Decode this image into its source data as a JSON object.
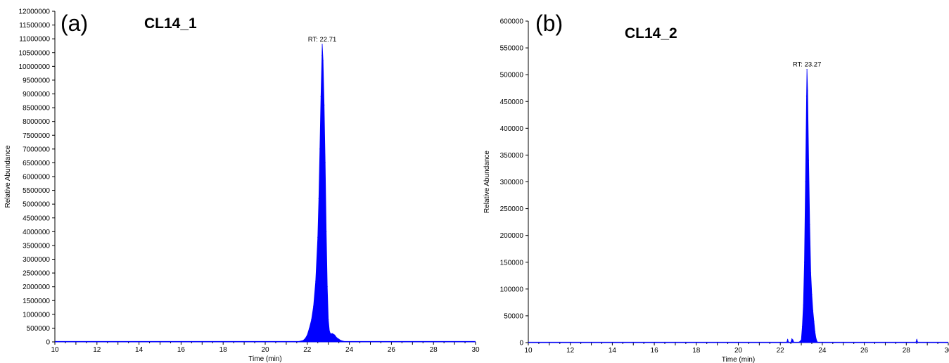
{
  "chart_data": [
    {
      "type": "area",
      "panel_label": "(a)",
      "title": "CL14_1",
      "xlabel": "Time (min)",
      "ylabel": "Relative Abundance",
      "xlim": [
        10,
        30
      ],
      "ylim": [
        0,
        12000000
      ],
      "xticks": [
        10,
        12,
        14,
        16,
        18,
        20,
        22,
        24,
        26,
        28,
        30
      ],
      "yticks": [
        0,
        500000,
        1000000,
        1500000,
        2000000,
        2500000,
        3000000,
        3500000,
        4000000,
        4500000,
        5000000,
        5500000,
        6000000,
        6500000,
        7000000,
        7500000,
        8000000,
        8500000,
        9000000,
        9500000,
        10000000,
        10500000,
        11000000,
        11500000,
        12000000
      ],
      "color": "#0000ff",
      "grid": false,
      "peak_annotation": {
        "label": "RT: 22.71",
        "x": 22.71,
        "y": 10800000
      },
      "series": [
        {
          "x": [
            10.0,
            21.5,
            21.8,
            21.9,
            22.0,
            22.1,
            22.2,
            22.3,
            22.4,
            22.5,
            22.55,
            22.6,
            22.65,
            22.7,
            22.71,
            22.75,
            22.8,
            22.85,
            22.9,
            22.95,
            23.0,
            23.05,
            23.1,
            23.2,
            23.3,
            23.4,
            23.5,
            23.6,
            23.8,
            30.0
          ],
          "y": [
            0,
            0,
            50000,
            120000,
            250000,
            500000,
            800000,
            1300000,
            2200000,
            3800000,
            5200000,
            7000000,
            8900000,
            10400000,
            10800000,
            10200000,
            8600000,
            6500000,
            4000000,
            2000000,
            800000,
            400000,
            300000,
            300000,
            250000,
            150000,
            100000,
            50000,
            10000,
            0
          ]
        }
      ]
    },
    {
      "type": "area",
      "panel_label": "(b)",
      "title": "CL14_2",
      "xlabel": "Time (min)",
      "ylabel": "Relative Abundance",
      "xlim": [
        10,
        30
      ],
      "ylim": [
        0,
        600000
      ],
      "xticks": [
        10,
        12,
        14,
        16,
        18,
        20,
        22,
        24,
        26,
        28,
        30
      ],
      "yticks": [
        0,
        50000,
        100000,
        150000,
        200000,
        250000,
        300000,
        350000,
        400000,
        450000,
        500000,
        550000,
        600000
      ],
      "color": "#0000ff",
      "grid": false,
      "peak_annotation": {
        "label": "RT: 23.27",
        "x": 23.27,
        "y": 510000
      },
      "series": [
        {
          "x": [
            10.0,
            22.3,
            22.35,
            22.4,
            22.5,
            22.55,
            22.6,
            22.65,
            22.7,
            22.75,
            22.9,
            23.0,
            23.05,
            23.1,
            23.15,
            23.2,
            23.25,
            23.27,
            23.3,
            23.35,
            23.4,
            23.45,
            23.5,
            23.55,
            23.6,
            23.65,
            23.7,
            23.75,
            23.8,
            28.45,
            28.5,
            28.55,
            30.0
          ],
          "y": [
            0,
            0,
            6000,
            0,
            0,
            7000,
            5000,
            0,
            0,
            0,
            1000,
            5000,
            30000,
            70000,
            150000,
            300000,
            460000,
            510000,
            470000,
            340000,
            220000,
            130000,
            90000,
            60000,
            40000,
            20000,
            8000,
            2000,
            0,
            0,
            6000,
            0,
            0
          ]
        }
      ]
    }
  ]
}
